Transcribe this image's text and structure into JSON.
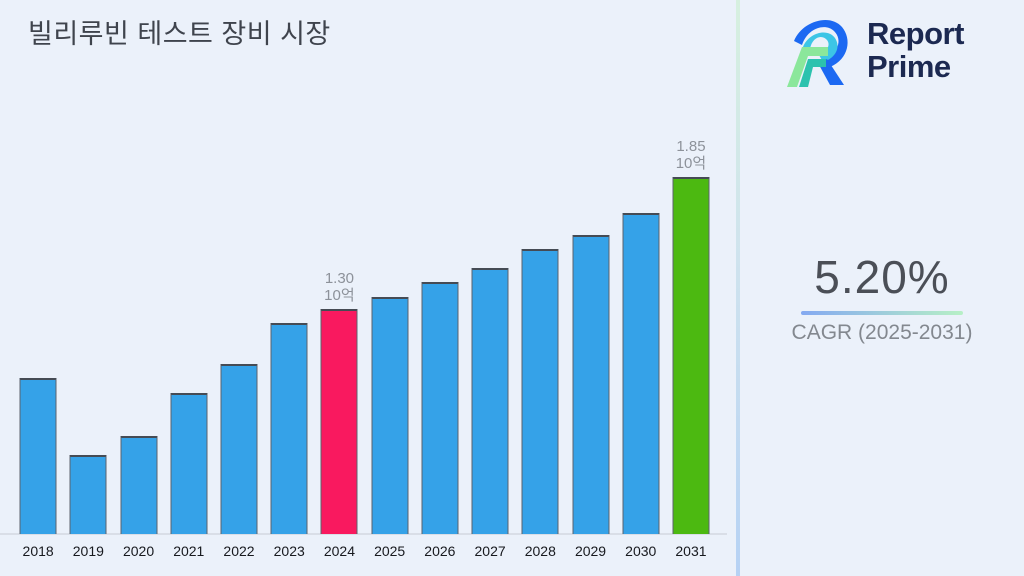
{
  "page": {
    "background": "#ebf1fa"
  },
  "header": {
    "title": "빌리루빈 테스트 장비 시장"
  },
  "brand": {
    "line1": "Report",
    "line2": "Prime",
    "text_color": "#1c2951"
  },
  "kpi": {
    "value": "5.20%",
    "label": "CAGR (2025-2031)"
  },
  "divider": {
    "top_color": "#d6f0df",
    "bottom_color": "#b6d2f4"
  },
  "chart_data": {
    "type": "bar",
    "title": "빌리루빈 테스트 장비 시장",
    "unit_label": "10억",
    "categories": [
      "2018",
      "2019",
      "2020",
      "2021",
      "2022",
      "2023",
      "2024",
      "2025",
      "2026",
      "2027",
      "2028",
      "2029",
      "2030",
      "2031"
    ],
    "values": [
      1.01,
      0.69,
      0.77,
      0.95,
      1.07,
      1.24,
      1.3,
      1.35,
      1.41,
      1.47,
      1.55,
      1.61,
      1.7,
      1.85
    ],
    "labeled_points": [
      {
        "category": "2024",
        "line1": "1.30",
        "line2": "10억"
      },
      {
        "category": "2031",
        "line1": "1.85",
        "line2": "10억"
      }
    ],
    "highlight_current_index": 6,
    "highlight_forecast_index": 13,
    "colors": {
      "bar_default": "#35a2e8",
      "bar_current": "#f9195f",
      "bar_forecast": "#4cb911",
      "bar_border": "#5c636d",
      "annotation_text": "#8d929a",
      "axis_label": "#17191e"
    },
    "ylim": [
      0.36,
      1.85
    ],
    "xlabel": "",
    "ylabel": "",
    "grid": false,
    "legend": false
  }
}
